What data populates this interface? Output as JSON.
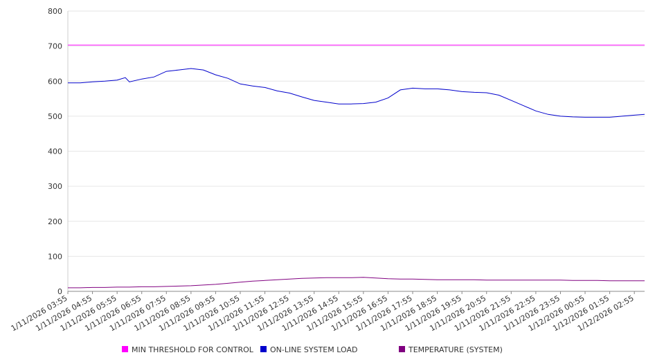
{
  "chart_data": {
    "type": "line",
    "title": "",
    "xlabel": "",
    "ylabel": "",
    "ylim": [
      0,
      800
    ],
    "yticks": [
      0,
      100,
      200,
      300,
      400,
      500,
      600,
      700,
      800
    ],
    "grid": true,
    "legend_position": "bottom",
    "x_tick_labels": [
      "1/11/2026 03:55",
      "1/11/2026 04:55",
      "1/11/2026 05:55",
      "1/11/2026 06:55",
      "1/11/2026 07:55",
      "1/11/2026 08:55",
      "1/11/2026 09:55",
      "1/11/2026 10:55",
      "1/11/2026 11:55",
      "1/11/2026 12:55",
      "1/11/2026 13:55",
      "1/11/2026 14:55",
      "1/11/2026 15:55",
      "1/11/2026 16:55",
      "1/11/2026 17:55",
      "1/11/2026 18:55",
      "1/11/2026 19:55",
      "1/11/2026 20:55",
      "1/11/2026 21:55",
      "1/11/2026 22:55",
      "1/11/2026 23:55",
      "1/12/2026 00:55",
      "1/12/2026 01:55",
      "1/12/2026 02:55"
    ],
    "x": [
      "1/11/2026 03:55",
      "1/11/2026 04:25",
      "1/11/2026 04:55",
      "1/11/2026 05:25",
      "1/11/2026 05:55",
      "1/11/2026 06:15",
      "1/11/2026 06:25",
      "1/11/2026 06:55",
      "1/11/2026 07:25",
      "1/11/2026 07:55",
      "1/11/2026 08:25",
      "1/11/2026 08:55",
      "1/11/2026 09:25",
      "1/11/2026 09:55",
      "1/11/2026 10:25",
      "1/11/2026 10:55",
      "1/11/2026 11:25",
      "1/11/2026 11:55",
      "1/11/2026 12:25",
      "1/11/2026 12:55",
      "1/11/2026 13:25",
      "1/11/2026 13:55",
      "1/11/2026 14:25",
      "1/11/2026 14:55",
      "1/11/2026 15:25",
      "1/11/2026 15:55",
      "1/11/2026 16:25",
      "1/11/2026 16:55",
      "1/11/2026 17:25",
      "1/11/2026 17:55",
      "1/11/2026 18:25",
      "1/11/2026 18:55",
      "1/11/2026 19:25",
      "1/11/2026 19:55",
      "1/11/2026 20:25",
      "1/11/2026 20:55",
      "1/11/2026 21:25",
      "1/11/2026 21:55",
      "1/11/2026 22:25",
      "1/11/2026 22:55",
      "1/11/2026 23:25",
      "1/11/2026 23:55",
      "1/12/2026 00:25",
      "1/12/2026 00:55",
      "1/12/2026 01:25",
      "1/12/2026 01:55",
      "1/12/2026 02:25",
      "1/12/2026 02:55",
      "1/12/2026 03:20"
    ],
    "series": [
      {
        "name": "MIN THRESHOLD FOR CONTROL",
        "color": "#ff00ff",
        "values": [
          703,
          703,
          703,
          703,
          703,
          703,
          703,
          703,
          703,
          703,
          703,
          703,
          703,
          703,
          703,
          703,
          703,
          703,
          703,
          703,
          703,
          703,
          703,
          703,
          703,
          703,
          703,
          703,
          703,
          703,
          703,
          703,
          703,
          703,
          703,
          703,
          703,
          703,
          703,
          703,
          703,
          703,
          703,
          703,
          703,
          703,
          703,
          703,
          703
        ]
      },
      {
        "name": "ON-LINE SYSTEM LOAD",
        "color": "#0000cc",
        "values": [
          595,
          595,
          598,
          600,
          603,
          610,
          598,
          606,
          612,
          628,
          632,
          636,
          632,
          618,
          608,
          592,
          586,
          582,
          572,
          566,
          555,
          545,
          540,
          535,
          535,
          536,
          540,
          552,
          575,
          580,
          578,
          578,
          575,
          570,
          568,
          567,
          560,
          545,
          530,
          515,
          505,
          500,
          498,
          497,
          497,
          497,
          500,
          503,
          505
        ]
      },
      {
        "name": "TEMPERATURE (SYSTEM)",
        "color": "#800080",
        "values": [
          10,
          10,
          11,
          11,
          12,
          12,
          12,
          13,
          13,
          14,
          15,
          16,
          18,
          20,
          23,
          26,
          29,
          31,
          33,
          35,
          37,
          38,
          39,
          39,
          39,
          40,
          38,
          36,
          35,
          35,
          34,
          33,
          33,
          33,
          33,
          32,
          32,
          32,
          32,
          32,
          32,
          32,
          31,
          31,
          31,
          30,
          30,
          30,
          30
        ]
      }
    ]
  }
}
